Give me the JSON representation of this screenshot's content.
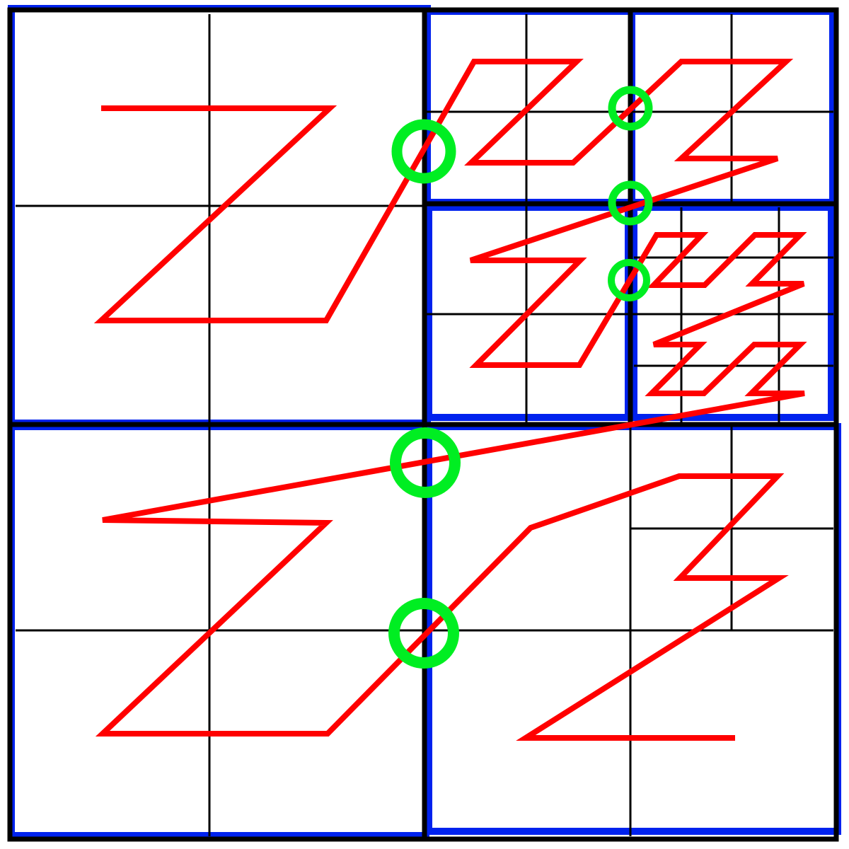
{
  "colors": {
    "background": "#ffffff",
    "grid": "#000000",
    "block_border": "#0022ee",
    "curve": "#ff0000",
    "crossing_marker": "#00ee22"
  },
  "diagram": {
    "kind": "quadtree z-order (morton) curve",
    "levels_shown": 4
  }
}
